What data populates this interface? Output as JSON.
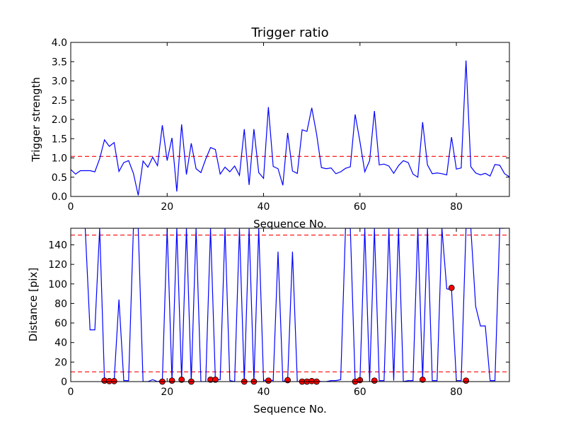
{
  "chart_data": [
    {
      "type": "line",
      "title": "Trigger ratio",
      "xlabel": "Sequence No.",
      "ylabel": "Trigger strength",
      "xlim": [
        0,
        91
      ],
      "ylim": [
        0,
        4.0
      ],
      "xticks": [
        0,
        20,
        40,
        60,
        80
      ],
      "xtick_labels": [
        "0",
        "20",
        "40",
        "60",
        "80"
      ],
      "yticks": [
        0.0,
        0.5,
        1.0,
        1.5,
        2.0,
        2.5,
        3.0,
        3.5,
        4.0
      ],
      "ytick_labels": [
        "0.0",
        "0.5",
        "1.0",
        "1.5",
        "2.0",
        "2.5",
        "3.0",
        "3.5",
        "4.0"
      ],
      "grid": false,
      "series": [
        {
          "color": "#0000ff",
          "x": [
            0,
            1,
            2,
            3,
            4,
            5,
            6,
            7,
            8,
            9,
            10,
            11,
            12,
            13,
            14,
            15,
            16,
            17,
            18,
            19,
            20,
            21,
            22,
            23,
            24,
            25,
            26,
            27,
            28,
            29,
            30,
            31,
            32,
            33,
            34,
            35,
            36,
            37,
            38,
            39,
            40,
            41,
            42,
            43,
            44,
            45,
            46,
            47,
            48,
            49,
            50,
            51,
            52,
            53,
            54,
            55,
            56,
            57,
            58,
            59,
            60,
            61,
            62,
            63,
            64,
            65,
            66,
            67,
            68,
            69,
            70,
            71,
            72,
            73,
            74,
            75,
            76,
            77,
            78,
            79,
            80,
            81,
            82,
            83,
            84,
            85,
            86,
            87,
            88,
            89,
            90,
            91
          ],
          "y": [
            0.7,
            0.58,
            0.67,
            0.67,
            0.67,
            0.64,
            0.98,
            1.47,
            1.3,
            1.4,
            0.65,
            0.88,
            0.93,
            0.6,
            0.03,
            0.92,
            0.76,
            1.02,
            0.8,
            1.85,
            0.93,
            1.52,
            0.13,
            1.87,
            0.57,
            1.38,
            0.72,
            0.62,
            0.97,
            1.27,
            1.22,
            0.58,
            0.76,
            0.64,
            0.79,
            0.55,
            1.75,
            0.3,
            1.75,
            0.62,
            0.47,
            2.32,
            0.78,
            0.72,
            0.29,
            1.65,
            0.66,
            0.6,
            1.73,
            1.69,
            2.3,
            1.62,
            0.75,
            0.72,
            0.74,
            0.59,
            0.64,
            0.73,
            0.77,
            2.13,
            1.42,
            0.64,
            0.93,
            2.22,
            0.82,
            0.84,
            0.79,
            0.6,
            0.8,
            0.93,
            0.88,
            0.58,
            0.5,
            1.93,
            0.82,
            0.59,
            0.61,
            0.59,
            0.56,
            1.54,
            0.71,
            0.74,
            3.53,
            0.77,
            0.61,
            0.56,
            0.6,
            0.53,
            0.83,
            0.81,
            0.59,
            0.51
          ]
        }
      ],
      "hlines": [
        {
          "y": 1.04,
          "color": "#ff0000",
          "style": "dashed"
        }
      ]
    },
    {
      "type": "line",
      "title": "",
      "xlabel": "Sequence No.",
      "ylabel": "Distance [pix]",
      "xlim": [
        0,
        91
      ],
      "ylim": [
        0,
        157
      ],
      "xticks": [
        0,
        20,
        40,
        60,
        80
      ],
      "xtick_labels": [
        "0",
        "20",
        "40",
        "60",
        "80"
      ],
      "yticks": [
        0,
        20,
        40,
        60,
        80,
        100,
        120,
        140
      ],
      "ytick_labels": [
        "0",
        "20",
        "40",
        "60",
        "80",
        "100",
        "120",
        "140"
      ],
      "grid": false,
      "series": [
        {
          "color": "#0000ff",
          "x": [
            3,
            4,
            5,
            6,
            7,
            8,
            9,
            10,
            11,
            12,
            13,
            14,
            15,
            16,
            17,
            18,
            19,
            20,
            21,
            22,
            23,
            24,
            25,
            26,
            27,
            28,
            29,
            30,
            31,
            32,
            33,
            34,
            35,
            36,
            37,
            38,
            39,
            40,
            41,
            42,
            43,
            44,
            45,
            46,
            47,
            48,
            49,
            50,
            51,
            52,
            53,
            54,
            55,
            56,
            57,
            58,
            59,
            60,
            61,
            62,
            63,
            64,
            65,
            66,
            67,
            68,
            69,
            70,
            71,
            72,
            73,
            74,
            75,
            76,
            77,
            78,
            79,
            80,
            81,
            82,
            83,
            84,
            85,
            86,
            87,
            88,
            89,
            90
          ],
          "y": [
            157,
            53,
            53,
            157,
            1,
            1,
            1,
            84,
            1,
            1,
            157,
            157,
            0,
            0,
            2,
            0,
            1,
            157,
            1,
            157,
            2,
            157,
            0,
            157,
            0,
            0,
            157,
            2,
            2,
            157,
            1,
            0,
            157,
            0,
            157,
            0,
            157,
            1,
            2,
            1,
            133,
            0,
            2,
            133,
            0,
            0,
            0,
            1,
            1,
            0,
            0,
            1,
            1,
            2,
            157,
            157,
            0,
            2,
            157,
            0,
            157,
            1,
            1,
            157,
            1,
            157,
            0,
            1,
            1,
            157,
            2,
            157,
            1,
            1,
            157,
            95,
            94,
            1,
            1,
            157,
            157,
            77,
            57,
            57,
            1,
            1,
            157,
            157
          ]
        },
        {
          "color": "#ff0000",
          "marker": "circle",
          "x": [
            7,
            8,
            9,
            19,
            21,
            23,
            25,
            29,
            30,
            36,
            38,
            41,
            45,
            48,
            49,
            50,
            51,
            59,
            60,
            63,
            73,
            79,
            82
          ],
          "y": [
            1,
            0.5,
            0.5,
            0,
            1,
            2,
            0,
            2,
            2,
            0,
            0,
            1,
            1.5,
            0,
            0,
            0.5,
            0,
            0,
            1.5,
            1,
            2,
            96,
            1
          ]
        }
      ],
      "hlines": [
        {
          "y": 10,
          "color": "#ff0000",
          "style": "dashed"
        },
        {
          "y": 150,
          "color": "#ff0000",
          "style": "dashed"
        }
      ]
    }
  ]
}
